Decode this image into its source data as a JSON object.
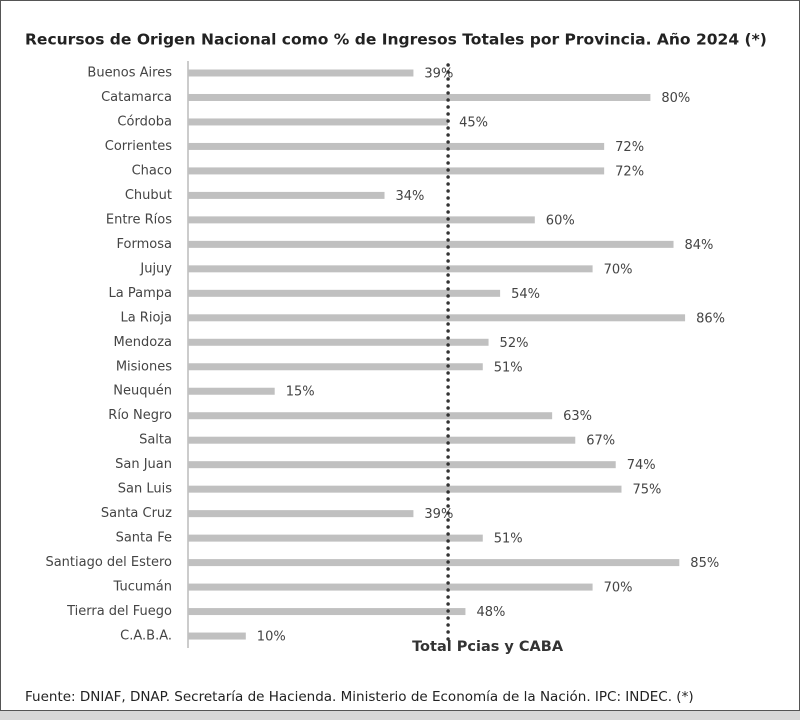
{
  "chart_data": {
    "type": "bar",
    "orientation": "horizontal",
    "title": "Recursos de Origen Nacional como % de Ingresos Totales por Provincia. Año 2024 (*)",
    "categories": [
      "Buenos Aires",
      "Catamarca",
      "Córdoba",
      "Corrientes",
      "Chaco",
      "Chubut",
      "Entre Ríos",
      "Formosa",
      "Jujuy",
      "La Pampa",
      "La Rioja",
      "Mendoza",
      "Misiones",
      "Neuquén",
      "Río Negro",
      "Salta",
      "San Juan",
      "San Luis",
      "Santa Cruz",
      "Santa Fe",
      "Santiago del Estero",
      "Tucumán",
      "Tierra del Fuego",
      "C.A.B.A."
    ],
    "values": [
      39,
      80,
      45,
      72,
      72,
      34,
      60,
      84,
      70,
      54,
      86,
      52,
      51,
      15,
      63,
      67,
      74,
      75,
      39,
      51,
      85,
      70,
      48,
      10
    ],
    "value_labels": [
      "39%",
      "80%",
      "45%",
      "72%",
      "72%",
      "34%",
      "60%",
      "84%",
      "70%",
      "54%",
      "86%",
      "52%",
      "51%",
      "15%",
      "63%",
      "67%",
      "74%",
      "75%",
      "39%",
      "51%",
      "85%",
      "70%",
      "48%",
      "10%"
    ],
    "color": "#c0c0c0",
    "xlim": [
      0,
      100
    ],
    "reference_line": {
      "value": 45,
      "label": "Total Pcias y CABA",
      "color": "#333333"
    },
    "note": "Fuente: DNIAF, DNAP. Secretaría de Hacienda. Ministerio de Economía de la Nación. IPC: INDEC. (*)"
  }
}
